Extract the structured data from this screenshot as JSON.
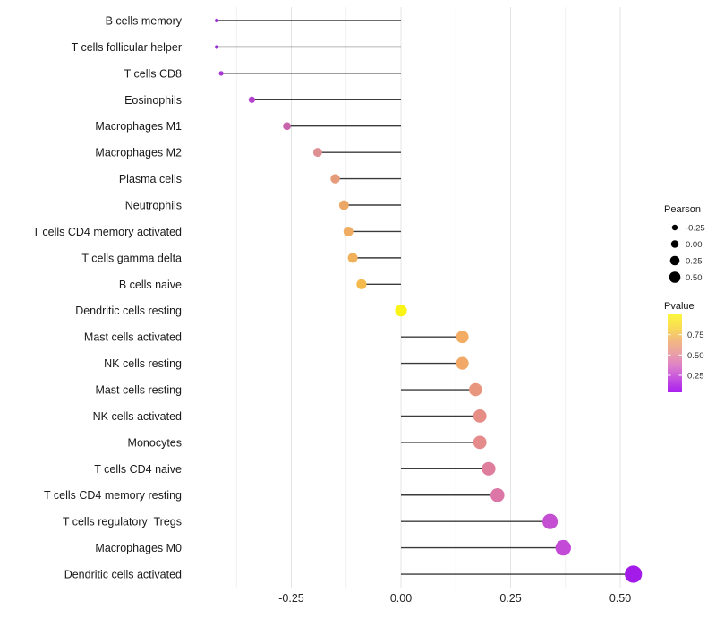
{
  "chart_data": {
    "type": "lollipop",
    "title": "",
    "xlabel": "",
    "ylabel": "",
    "x_ticks": [
      "-0.25",
      "0.00",
      "0.25",
      "0.50"
    ],
    "x_tick_values": [
      -0.25,
      0.0,
      0.25,
      0.5
    ],
    "xlim": [
      -0.485,
      0.57
    ],
    "grid": "vertical-only",
    "grid_minor_step": 0.125,
    "value_name": "Pearson",
    "rows": [
      {
        "label": "B cells memory",
        "pearson": -0.42,
        "color": "#9B30D6",
        "radius": 2.2
      },
      {
        "label": "T cells follicular helper",
        "pearson": -0.42,
        "color": "#9430D2",
        "radius": 2.2
      },
      {
        "label": "T cells CD8",
        "pearson": -0.41,
        "color": "#A737D2",
        "radius": 2.6
      },
      {
        "label": "Eosinophils",
        "pearson": -0.34,
        "color": "#B441CE",
        "radius": 3.6
      },
      {
        "label": "Macrophages M1",
        "pearson": -0.26,
        "color": "#C765AC",
        "radius": 4.4
      },
      {
        "label": "Macrophages M2",
        "pearson": -0.19,
        "color": "#DE8F92",
        "radius": 5.0
      },
      {
        "label": "Plasma cells",
        "pearson": -0.15,
        "color": "#E69B7B",
        "radius": 5.2
      },
      {
        "label": "Neutrophils",
        "pearson": -0.13,
        "color": "#ECA766",
        "radius": 5.4
      },
      {
        "label": "T cells CD4 memory activated",
        "pearson": -0.12,
        "color": "#EFAC62",
        "radius": 5.4
      },
      {
        "label": "T cells gamma delta",
        "pearson": -0.11,
        "color": "#F1B15B",
        "radius": 5.5
      },
      {
        "label": "B cells naive",
        "pearson": -0.09,
        "color": "#F5BA4D",
        "radius": 5.6
      },
      {
        "label": "Dendritic cells resting",
        "pearson": 0.0,
        "color": "#FAF416",
        "radius": 6.6
      },
      {
        "label": "Mast cells activated",
        "pearson": 0.14,
        "color": "#F2AC63",
        "radius": 7.0
      },
      {
        "label": "NK cells resting",
        "pearson": 0.14,
        "color": "#F2A967",
        "radius": 7.1
      },
      {
        "label": "Mast cells resting",
        "pearson": 0.17,
        "color": "#E9967F",
        "radius": 7.3
      },
      {
        "label": "NK cells activated",
        "pearson": 0.18,
        "color": "#E68D85",
        "radius": 7.4
      },
      {
        "label": "Monocytes",
        "pearson": 0.18,
        "color": "#E68B8B",
        "radius": 7.4
      },
      {
        "label": "T cells CD4 naive",
        "pearson": 0.2,
        "color": "#DE7E9C",
        "radius": 7.6
      },
      {
        "label": "T cells CD4 memory resting",
        "pearson": 0.22,
        "color": "#DB76A6",
        "radius": 7.8
      },
      {
        "label": "T cells regulatory  Tregs",
        "pearson": 0.34,
        "color": "#C44FD2",
        "radius": 8.6
      },
      {
        "label": "Macrophages M0",
        "pearson": 0.37,
        "color": "#C24AD6",
        "radius": 8.7
      },
      {
        "label": "Dendritic cells activated",
        "pearson": 0.53,
        "color": "#A21BE8",
        "radius": 9.6
      }
    ]
  },
  "legends": {
    "size": {
      "title": "Pearson",
      "items": [
        {
          "label": "-0.25",
          "radius": 3.2
        },
        {
          "label": "0.00",
          "radius": 4.2
        },
        {
          "label": "0.25",
          "radius": 5.3
        },
        {
          "label": "0.50",
          "radius": 6.3
        }
      ],
      "dot_color": "#000000"
    },
    "color": {
      "title": "Pvalue",
      "tick_labels": [
        "0.75",
        "0.50",
        "0.25"
      ],
      "tick_values": [
        0.75,
        0.5,
        0.25
      ],
      "range": [
        0.04,
        1.0
      ],
      "gradient_top_to_bottom": [
        "#FCF63E",
        "#F9DC55",
        "#F2B97F",
        "#EAA0A5",
        "#DD7FCB",
        "#C44FE0",
        "#A91FEF"
      ]
    }
  },
  "colors": {
    "background": "#ffffff",
    "stem": "#3B3B3B",
    "grid_major": "#E4E4E4",
    "grid_minor": "#F1F1F1",
    "label_text": "#191919",
    "axis_text": "#232323"
  }
}
